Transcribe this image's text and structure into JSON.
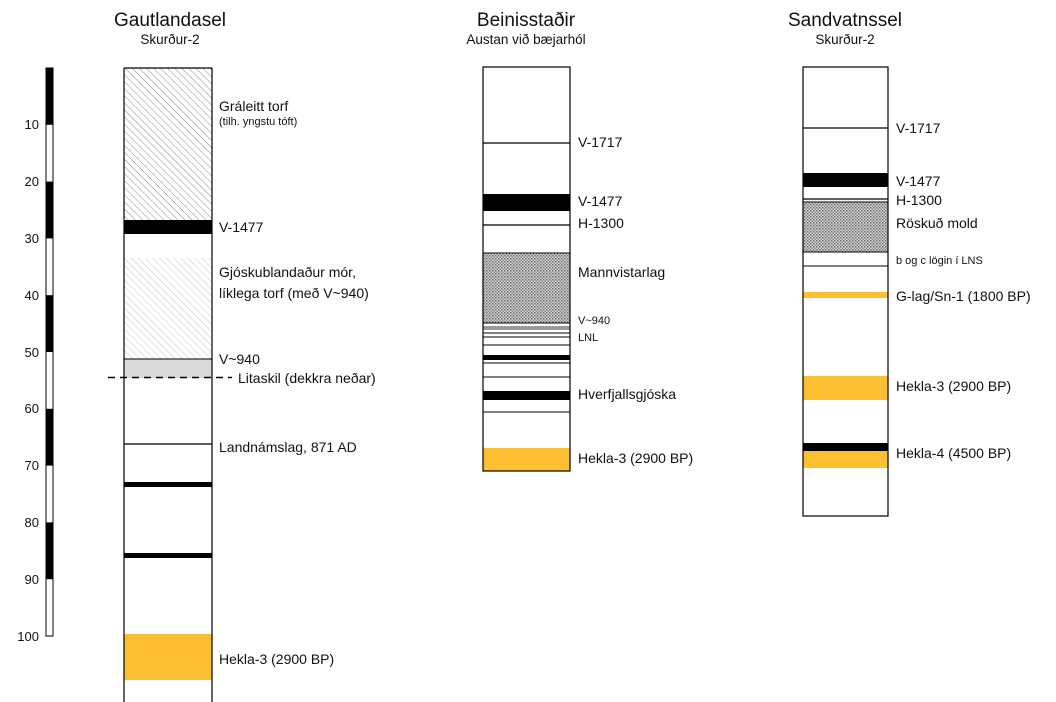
{
  "depth_scale": {
    "ticks": [
      "10",
      "20",
      "30",
      "40",
      "50",
      "60",
      "70",
      "80",
      "90",
      "100"
    ]
  },
  "colors": {
    "tephra_black": "#000000",
    "hekla_yellow": "#fdbf32",
    "outline": "#000000"
  },
  "columns": [
    {
      "id": "gautlandasel",
      "title": "Gautlandasel",
      "subtitle": "Skurður-2",
      "labels": [
        {
          "text": "Gráleitt torf",
          "small": false
        },
        {
          "text": "(tilh. yngstu tóft)",
          "small": true
        },
        {
          "text": "V-1477",
          "small": false
        },
        {
          "text": "Gjóskublandaður mór,",
          "small": false
        },
        {
          "text": "líklega torf (með V~940)",
          "small": false
        },
        {
          "text": "V~940",
          "small": false
        },
        {
          "text": "Litaskil (dekkra neðar)",
          "small": false
        },
        {
          "text": "Landnámslag, 871 AD",
          "small": false
        },
        {
          "text": "Hekla-3 (2900 BP)",
          "small": false
        }
      ]
    },
    {
      "id": "beinisstadir",
      "title": "Beinisstaðir",
      "subtitle": "Austan við bæjarhól",
      "labels": [
        {
          "text": "V-1717",
          "small": false
        },
        {
          "text": "V-1477",
          "small": false
        },
        {
          "text": "H-1300",
          "small": false
        },
        {
          "text": "Mannvistarlag",
          "small": false
        },
        {
          "text": "V~940",
          "small": true
        },
        {
          "text": "LNL",
          "small": true
        },
        {
          "text": "Hverfjallsgjóska",
          "small": false
        },
        {
          "text": "Hekla-3 (2900 BP)",
          "small": false
        }
      ]
    },
    {
      "id": "sandvatnssel",
      "title": "Sandvatnssel",
      "subtitle": "Skurður-2",
      "labels": [
        {
          "text": "V-1717",
          "small": false
        },
        {
          "text": "V-1477",
          "small": false
        },
        {
          "text": "H-1300",
          "small": false
        },
        {
          "text": "Röskuð mold",
          "small": false
        },
        {
          "text": "b og c lögin í LNS",
          "small": true
        },
        {
          "text": "G-lag/Sn-1 (1800 BP)",
          "small": false
        },
        {
          "text": "Hekla-3 (2900 BP)",
          "small": false
        },
        {
          "text": "Hekla-4 (4500 BP)",
          "small": false
        }
      ]
    }
  ]
}
